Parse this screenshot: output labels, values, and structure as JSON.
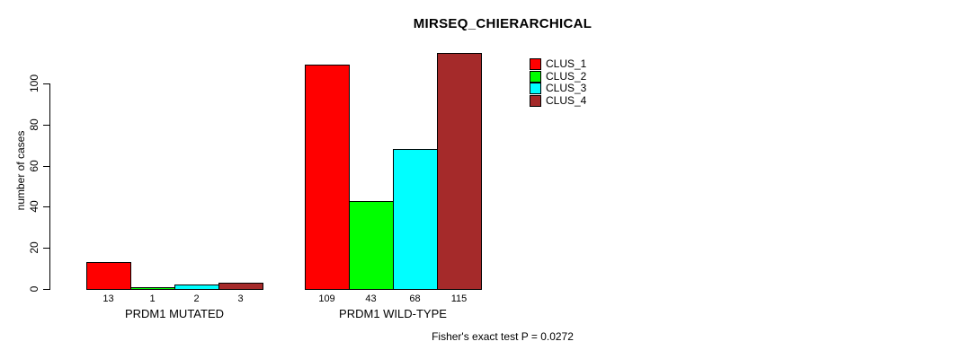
{
  "chart_data": {
    "type": "bar",
    "title": "MIRSEQ_CHIERARCHICAL",
    "ylabel": "number of cases",
    "xlabel": "",
    "groups": [
      "PRDM1 MUTATED",
      "PRDM1 WILD-TYPE"
    ],
    "series": [
      {
        "name": "CLUS_1",
        "color": "#FF0000",
        "values": [
          13,
          109
        ]
      },
      {
        "name": "CLUS_2",
        "color": "#00FF00",
        "values": [
          1,
          43
        ]
      },
      {
        "name": "CLUS_3",
        "color": "#00FFFF",
        "values": [
          2,
          68
        ]
      },
      {
        "name": "CLUS_4",
        "color": "#A52A2A",
        "values": [
          3,
          115
        ]
      }
    ],
    "bar_value_labels": [
      [
        "13",
        "1",
        "2",
        "3"
      ],
      [
        "109",
        "43",
        "68",
        "115"
      ]
    ],
    "yticks": [
      0,
      20,
      40,
      60,
      80,
      100
    ],
    "ylim": [
      0,
      115
    ],
    "grid": false,
    "legend_position": "top-right",
    "legend_entries": [
      "CLUS_1",
      "CLUS_2",
      "CLUS_3",
      "CLUS_4"
    ],
    "annotation": "Fisher's exact test P = 0.0272"
  }
}
